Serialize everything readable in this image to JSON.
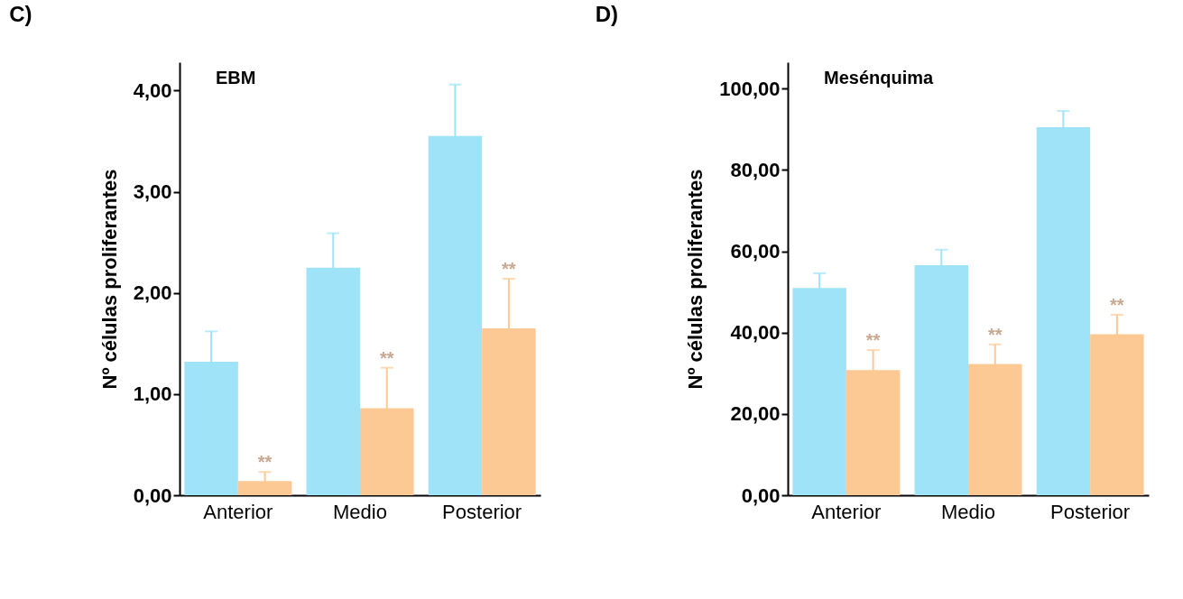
{
  "chart_data": [
    {
      "type": "bar",
      "title": "C)",
      "ylabel": "Nº células proliferantes",
      "categories": [
        "Anterior",
        "Medio",
        "Posterior"
      ],
      "series": [
        {
          "color": "#9ee3f7",
          "values": [
            1.32,
            2.25,
            3.55
          ],
          "errors": [
            0.3,
            0.34,
            0.51
          ]
        },
        {
          "color": "#fcc994",
          "values": [
            0.14,
            0.86,
            1.65
          ],
          "errors": [
            0.09,
            0.4,
            0.49
          ]
        }
      ],
      "ylim": [
        0,
        4.28
      ],
      "yticks": [
        {
          "value": 0,
          "label": "0,00"
        },
        {
          "value": 1,
          "label": "1,00"
        },
        {
          "value": 2,
          "label": "2,00"
        },
        {
          "value": 3,
          "label": "3,00"
        },
        {
          "value": 4,
          "label": "4,00"
        }
      ],
      "annotations": [
        "EBM",
        {
          "text": "**",
          "x": "Anterior",
          "y": 0.23
        },
        {
          "text": "**",
          "x": "Medio",
          "y": 1.26
        },
        {
          "text": "**",
          "x": "Posterior",
          "y": 2.14
        }
      ],
      "grid": false
    },
    {
      "type": "bar",
      "title": "D)",
      "ylabel": "Nº células proliferantes",
      "categories": [
        "Anterior",
        "Medio",
        "Posterior"
      ],
      "series": [
        {
          "color": "#9ee3f7",
          "values": [
            51,
            56.6,
            90.5
          ],
          "errors": [
            3.6,
            3.8,
            4.0
          ]
        },
        {
          "color": "#fcc994",
          "values": [
            30.8,
            32.3,
            39.6
          ],
          "errors": [
            4.9,
            4.8,
            4.8
          ]
        }
      ],
      "ylim": [
        0,
        106.5
      ],
      "yticks": [
        {
          "value": 0,
          "label": "0,00"
        },
        {
          "value": 20,
          "label": "20,00"
        },
        {
          "value": 40,
          "label": "40,00"
        },
        {
          "value": 60,
          "label": "60,00"
        },
        {
          "value": 80,
          "label": "80,00"
        },
        {
          "value": 100,
          "label": "100,00"
        }
      ],
      "annotations": [
        "Mesénquima",
        {
          "text": "**",
          "x": "Anterior",
          "y": 35.7
        },
        {
          "text": "**",
          "x": "Medio",
          "y": 37.1
        },
        {
          "text": "**",
          "x": "Posterior",
          "y": 44.4
        }
      ],
      "grid": false
    }
  ]
}
